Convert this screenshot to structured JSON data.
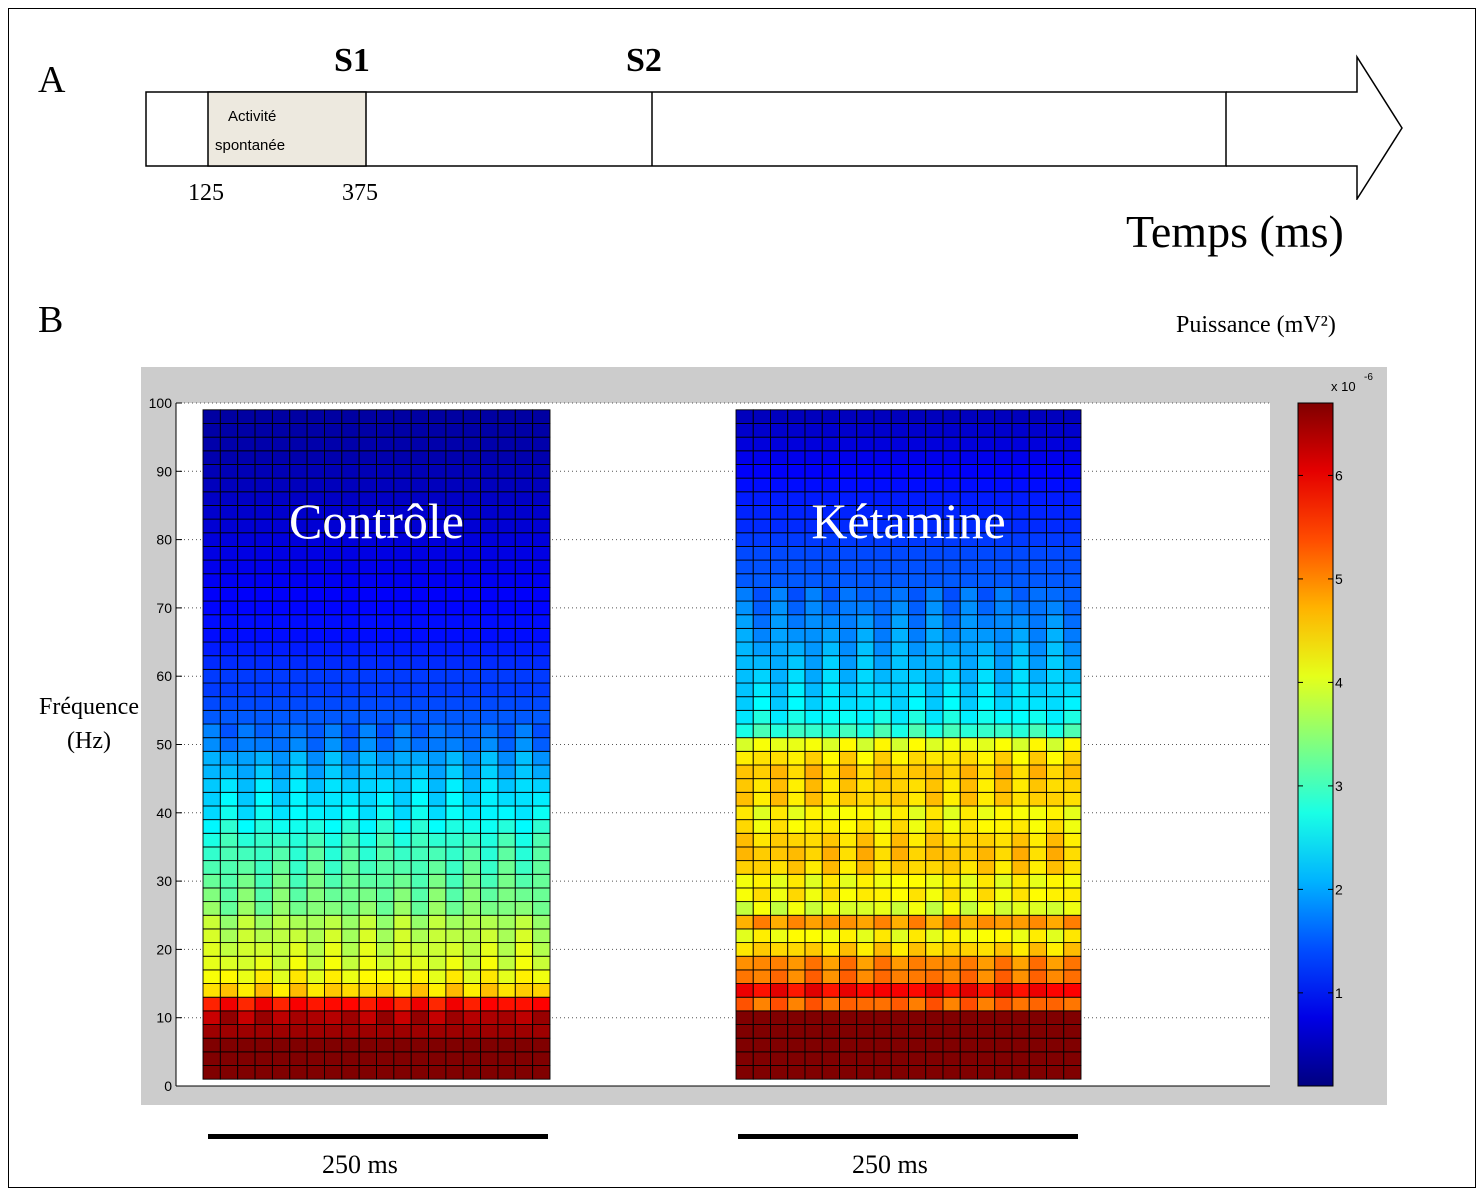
{
  "panelA": {
    "letter": "A",
    "s1_label": "S1",
    "s2_label": "S2",
    "box_label_line1": "Activité",
    "box_label_line2": "spontanée",
    "tick_start": "125",
    "tick_end": "375",
    "time_axis_label": "Temps (ms)",
    "box_color": "#ede9df"
  },
  "panelB": {
    "letter": "B",
    "colorbar_title": "Puissance  (mV²)",
    "y_label_line1": "Fréquence",
    "y_label_line2": "(Hz)",
    "scale_bar_left": "250 ms",
    "scale_bar_right": "250 ms"
  },
  "chart_data": {
    "type": "heatmap",
    "colormap": "jet",
    "y_ticks": [
      0,
      10,
      20,
      30,
      40,
      50,
      60,
      70,
      80,
      90,
      100
    ],
    "ylim": [
      0,
      100
    ],
    "grid": "horizontal dotted",
    "colorbar": {
      "multiplier": "x 10",
      "exponent": "-6",
      "ticks": [
        1,
        2,
        3,
        4,
        5,
        6
      ],
      "range": [
        0.1,
        6.7
      ]
    },
    "panels": [
      {
        "label": "Contrôle",
        "n_time_bins": 20,
        "freq_bins": [
          2,
          4,
          6,
          8,
          10,
          12,
          14,
          16,
          18,
          20,
          22,
          24,
          26,
          28,
          30,
          32,
          34,
          36,
          38,
          40,
          42,
          44,
          46,
          48,
          50,
          52,
          54,
          56,
          58,
          60,
          62,
          64,
          66,
          68,
          70,
          72,
          74,
          76,
          78,
          80,
          82,
          84,
          86,
          88,
          90,
          92,
          94,
          96,
          98
        ],
        "power_profile": [
          6.7,
          6.7,
          6.7,
          6.5,
          6.4,
          5.8,
          4.5,
          4.2,
          4.0,
          3.9,
          3.8,
          3.7,
          3.4,
          3.3,
          3.2,
          3.1,
          3.0,
          2.9,
          2.7,
          2.5,
          2.4,
          2.3,
          2.1,
          2.0,
          1.7,
          1.6,
          1.5,
          1.4,
          1.3,
          1.3,
          1.2,
          1.1,
          1.0,
          1.0,
          0.95,
          0.9,
          0.85,
          0.8,
          0.75,
          0.7,
          0.65,
          0.6,
          0.55,
          0.5,
          0.45,
          0.4,
          0.38,
          0.35,
          0.32
        ]
      },
      {
        "label": "Kétamine",
        "n_time_bins": 20,
        "freq_bins": [
          2,
          4,
          6,
          8,
          10,
          12,
          14,
          16,
          18,
          20,
          22,
          24,
          26,
          28,
          30,
          32,
          34,
          36,
          38,
          40,
          42,
          44,
          46,
          48,
          50,
          52,
          54,
          56,
          58,
          60,
          62,
          64,
          66,
          68,
          70,
          72,
          74,
          76,
          78,
          80,
          82,
          84,
          86,
          88,
          90,
          92,
          94,
          96,
          98
        ],
        "power_profile": [
          6.7,
          6.7,
          6.7,
          6.7,
          6.7,
          5.2,
          5.9,
          5.1,
          5.0,
          4.5,
          4.2,
          4.9,
          4.0,
          4.3,
          4.2,
          4.5,
          4.6,
          4.5,
          4.3,
          4.2,
          4.5,
          4.5,
          4.6,
          4.4,
          4.1,
          2.9,
          2.6,
          2.4,
          2.3,
          2.2,
          2.1,
          2.0,
          1.9,
          1.8,
          1.7,
          1.6,
          1.5,
          1.45,
          1.4,
          1.3,
          1.2,
          1.15,
          1.1,
          1.0,
          0.9,
          0.8,
          0.7,
          0.6,
          0.5
        ]
      }
    ]
  }
}
